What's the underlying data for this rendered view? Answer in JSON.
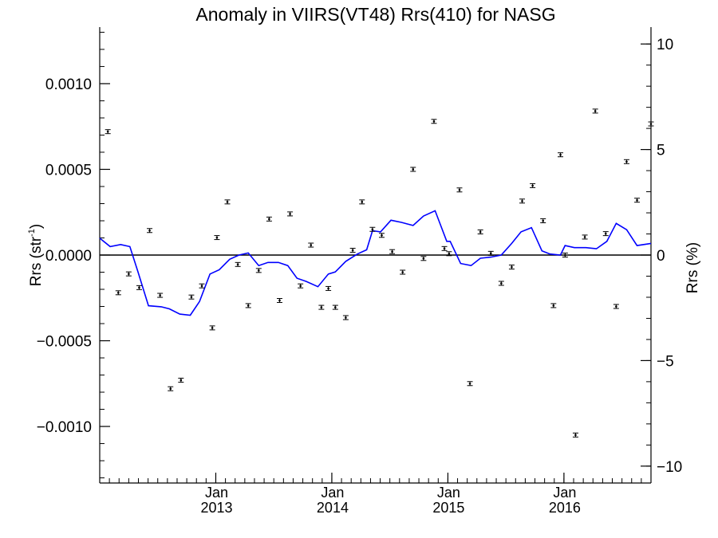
{
  "chart_data": {
    "type": "scatter",
    "title": "Anomaly in VIIRS(VT48) Rrs(410) for NASG",
    "ylabel_left": "Rrs (str",
    "ylabel_left_sup": "-1",
    "ylabel_left_close": ")",
    "ylabel_right": "Rrs (%)",
    "xlim": [
      2012.0,
      2016.75
    ],
    "ylim_left": [
      -0.00133,
      0.00133
    ],
    "ylim_right": [
      -10.8,
      10.8
    ],
    "left_ticks": [
      {
        "value": 0.001,
        "label": "0.0010"
      },
      {
        "value": 0.0005,
        "label": "0.0005"
      },
      {
        "value": 0.0,
        "label": "0.0000"
      },
      {
        "value": -0.0005,
        "label": "−0.0005"
      },
      {
        "value": -0.001,
        "label": "−0.0010"
      }
    ],
    "right_ticks": [
      {
        "value": 10,
        "label": "10"
      },
      {
        "value": 5,
        "label": "5"
      },
      {
        "value": 0,
        "label": "0"
      },
      {
        "value": -5,
        "label": "−5"
      },
      {
        "value": -10,
        "label": "−10"
      }
    ],
    "x_ticks": [
      {
        "value": 2013.0,
        "month": "Jan",
        "year": "2013"
      },
      {
        "value": 2014.0,
        "month": "Jan",
        "year": "2014"
      },
      {
        "value": 2015.0,
        "month": "Jan",
        "year": "2015"
      },
      {
        "value": 2016.0,
        "month": "Jan",
        "year": "2016"
      }
    ],
    "series": [
      {
        "style": "points with error bars",
        "axis": "left",
        "color": "#000000",
        "x": [
          2012.07,
          2012.16,
          2012.25,
          2012.34,
          2012.43,
          2012.52,
          2012.61,
          2012.7,
          2012.79,
          2012.88,
          2012.97,
          2013.01,
          2013.1,
          2013.19,
          2013.28,
          2013.37,
          2013.46,
          2013.55,
          2013.64,
          2013.73,
          2013.82,
          2013.91,
          2013.97,
          2014.03,
          2014.12,
          2014.18,
          2014.26,
          2014.35,
          2014.43,
          2014.52,
          2014.61,
          2014.7,
          2014.79,
          2014.88,
          2014.97,
          2015.01,
          2015.1,
          2015.19,
          2015.28,
          2015.37,
          2015.46,
          2015.55,
          2015.64,
          2015.73,
          2015.82,
          2015.91,
          2015.97,
          2016.01,
          2016.1,
          2016.18,
          2016.27,
          2016.36,
          2016.45,
          2016.54,
          2016.63,
          2016.75
        ],
        "y": [
          0.00072,
          -0.00022,
          -0.00011,
          -0.00019,
          0.000143,
          -0.000235,
          -0.00078,
          -0.00073,
          -0.000245,
          -0.00018,
          -0.000425,
          0.000102,
          0.00031,
          -5.5e-05,
          -0.000295,
          -9e-05,
          0.00021,
          -0.000265,
          0.00024,
          -0.00018,
          5.8e-05,
          -0.000305,
          -0.000195,
          -0.000305,
          -0.000365,
          2.8e-05,
          0.00031,
          0.00015,
          0.000115,
          2e-05,
          -0.0001,
          0.0005,
          -2e-05,
          0.00078,
          3.8e-05,
          8e-06,
          0.00038,
          -0.00075,
          0.000135,
          1e-05,
          -0.000165,
          -7e-05,
          0.000315,
          0.000405,
          0.0002,
          -0.000295,
          0.000585,
          0.0,
          -0.00105,
          0.000105,
          0.00084,
          0.000125,
          -0.0003,
          0.000545,
          0.00032,
          0.000765
        ]
      },
      {
        "style": "line",
        "axis": "right",
        "color": "#0000ff",
        "x": [
          2012.0,
          2012.09,
          2012.18,
          2012.26,
          2012.33,
          2012.42,
          2012.53,
          2012.6,
          2012.69,
          2012.78,
          2012.86,
          2012.95,
          2013.03,
          2013.12,
          2013.2,
          2013.28,
          2013.37,
          2013.45,
          2013.54,
          2013.62,
          2013.7,
          2013.78,
          2013.88,
          2013.97,
          2014.03,
          2014.12,
          2014.22,
          2014.3,
          2014.35,
          2014.42,
          2014.51,
          2014.6,
          2014.7,
          2014.79,
          2014.89,
          2014.99,
          2015.02,
          2015.11,
          2015.2,
          2015.28,
          2015.37,
          2015.46,
          2015.55,
          2015.63,
          2015.72,
          2015.81,
          2015.88,
          2015.97,
          2016.01,
          2016.09,
          2016.19,
          2016.28,
          2016.37,
          2016.45,
          2016.54,
          2016.63,
          2016.75
        ],
        "y": [
          0.8,
          0.4,
          0.5,
          0.4,
          -0.8,
          -2.4,
          -2.45,
          -2.55,
          -2.8,
          -2.85,
          -2.2,
          -0.9,
          -0.7,
          -0.2,
          0.0,
          0.1,
          -0.5,
          -0.35,
          -0.35,
          -0.5,
          -1.1,
          -1.25,
          -1.5,
          -0.9,
          -0.8,
          -0.3,
          0.05,
          0.25,
          1.15,
          1.1,
          1.65,
          1.55,
          1.4,
          1.85,
          2.1,
          0.65,
          0.65,
          -0.4,
          -0.5,
          -0.15,
          -0.1,
          0.0,
          0.55,
          1.1,
          1.3,
          0.2,
          0.05,
          0.0,
          0.45,
          0.35,
          0.35,
          0.3,
          0.65,
          1.5,
          1.2,
          0.45,
          0.55
        ]
      }
    ],
    "reference_line": {
      "axis": "left",
      "value": 0.0,
      "color": "#000000"
    }
  }
}
